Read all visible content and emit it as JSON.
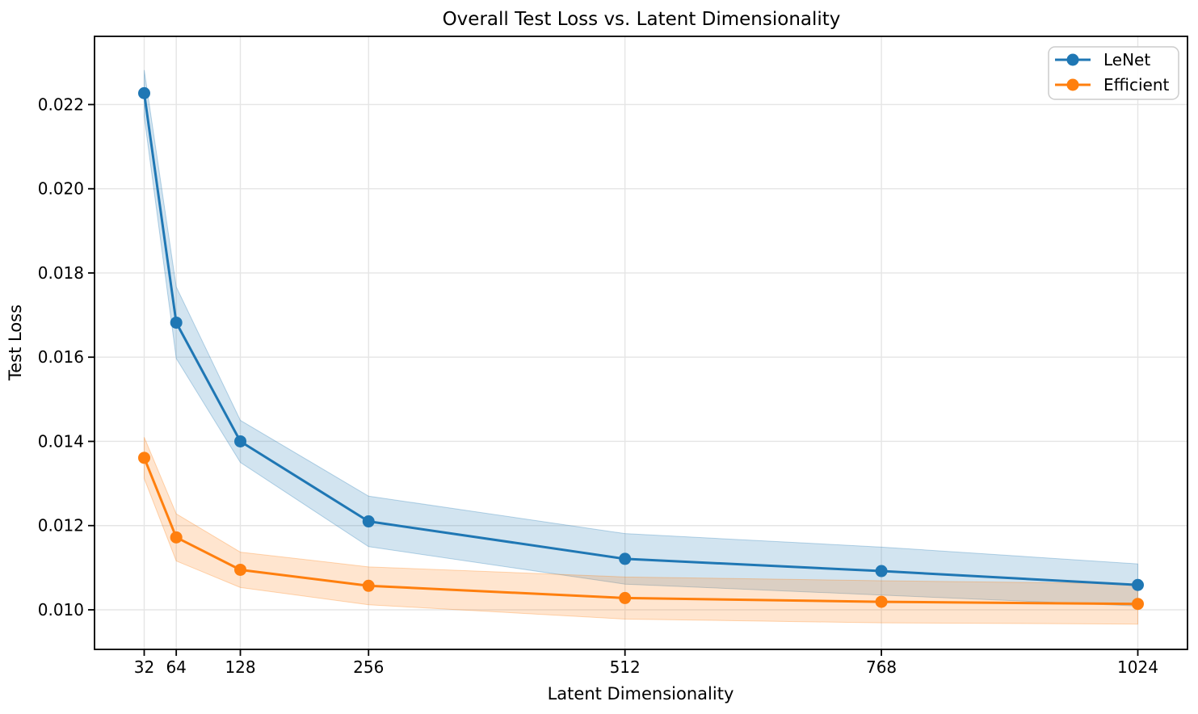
{
  "chart_data": {
    "type": "line",
    "title": "Overall Test Loss vs. Latent Dimensionality",
    "xlabel": "Latent Dimensionality",
    "ylabel": "Test Loss",
    "x": [
      32,
      64,
      128,
      256,
      512,
      768,
      1024
    ],
    "series": [
      {
        "name": "LeNet",
        "color": "#1f77b4",
        "values": [
          0.02227,
          0.01682,
          0.014,
          0.0121,
          0.01121,
          0.01092,
          0.01059
        ],
        "band_std": [
          0.00055,
          0.00085,
          0.0005,
          0.0006,
          0.0006,
          0.00057,
          0.0005
        ]
      },
      {
        "name": "Efficient",
        "color": "#ff7f0e",
        "values": [
          0.01361,
          0.01172,
          0.01095,
          0.01057,
          0.01028,
          0.01019,
          0.01014
        ],
        "band_std": [
          0.00049,
          0.00056,
          0.00042,
          0.00045,
          0.0005,
          0.0005,
          0.00048
        ]
      }
    ],
    "xticks": [
      {
        "v": 32,
        "label": "32"
      },
      {
        "v": 64,
        "label": "64"
      },
      {
        "v": 128,
        "label": "128"
      },
      {
        "v": 256,
        "label": "256"
      },
      {
        "v": 512,
        "label": "512"
      },
      {
        "v": 768,
        "label": "768"
      },
      {
        "v": 1024,
        "label": "1024"
      }
    ],
    "yticks": [
      {
        "v": 0.01,
        "label": "0.010"
      },
      {
        "v": 0.012,
        "label": "0.012"
      },
      {
        "v": 0.014,
        "label": "0.014"
      },
      {
        "v": 0.016,
        "label": "0.016"
      },
      {
        "v": 0.018,
        "label": "0.018"
      },
      {
        "v": 0.02,
        "label": "0.020"
      },
      {
        "v": 0.022,
        "label": "0.022"
      }
    ],
    "xlim": [
      -17.6,
      1073.6
    ],
    "ylim": [
      0.00906,
      0.02362
    ],
    "grid": true,
    "band_alpha": 0.2,
    "legend": {
      "position": "upper right",
      "entries": [
        "LeNet",
        "Efficient"
      ]
    },
    "colors": {
      "grid": "#e5e5e5",
      "spine": "#000000",
      "legend_border": "#cccccc",
      "background": "#ffffff"
    }
  }
}
